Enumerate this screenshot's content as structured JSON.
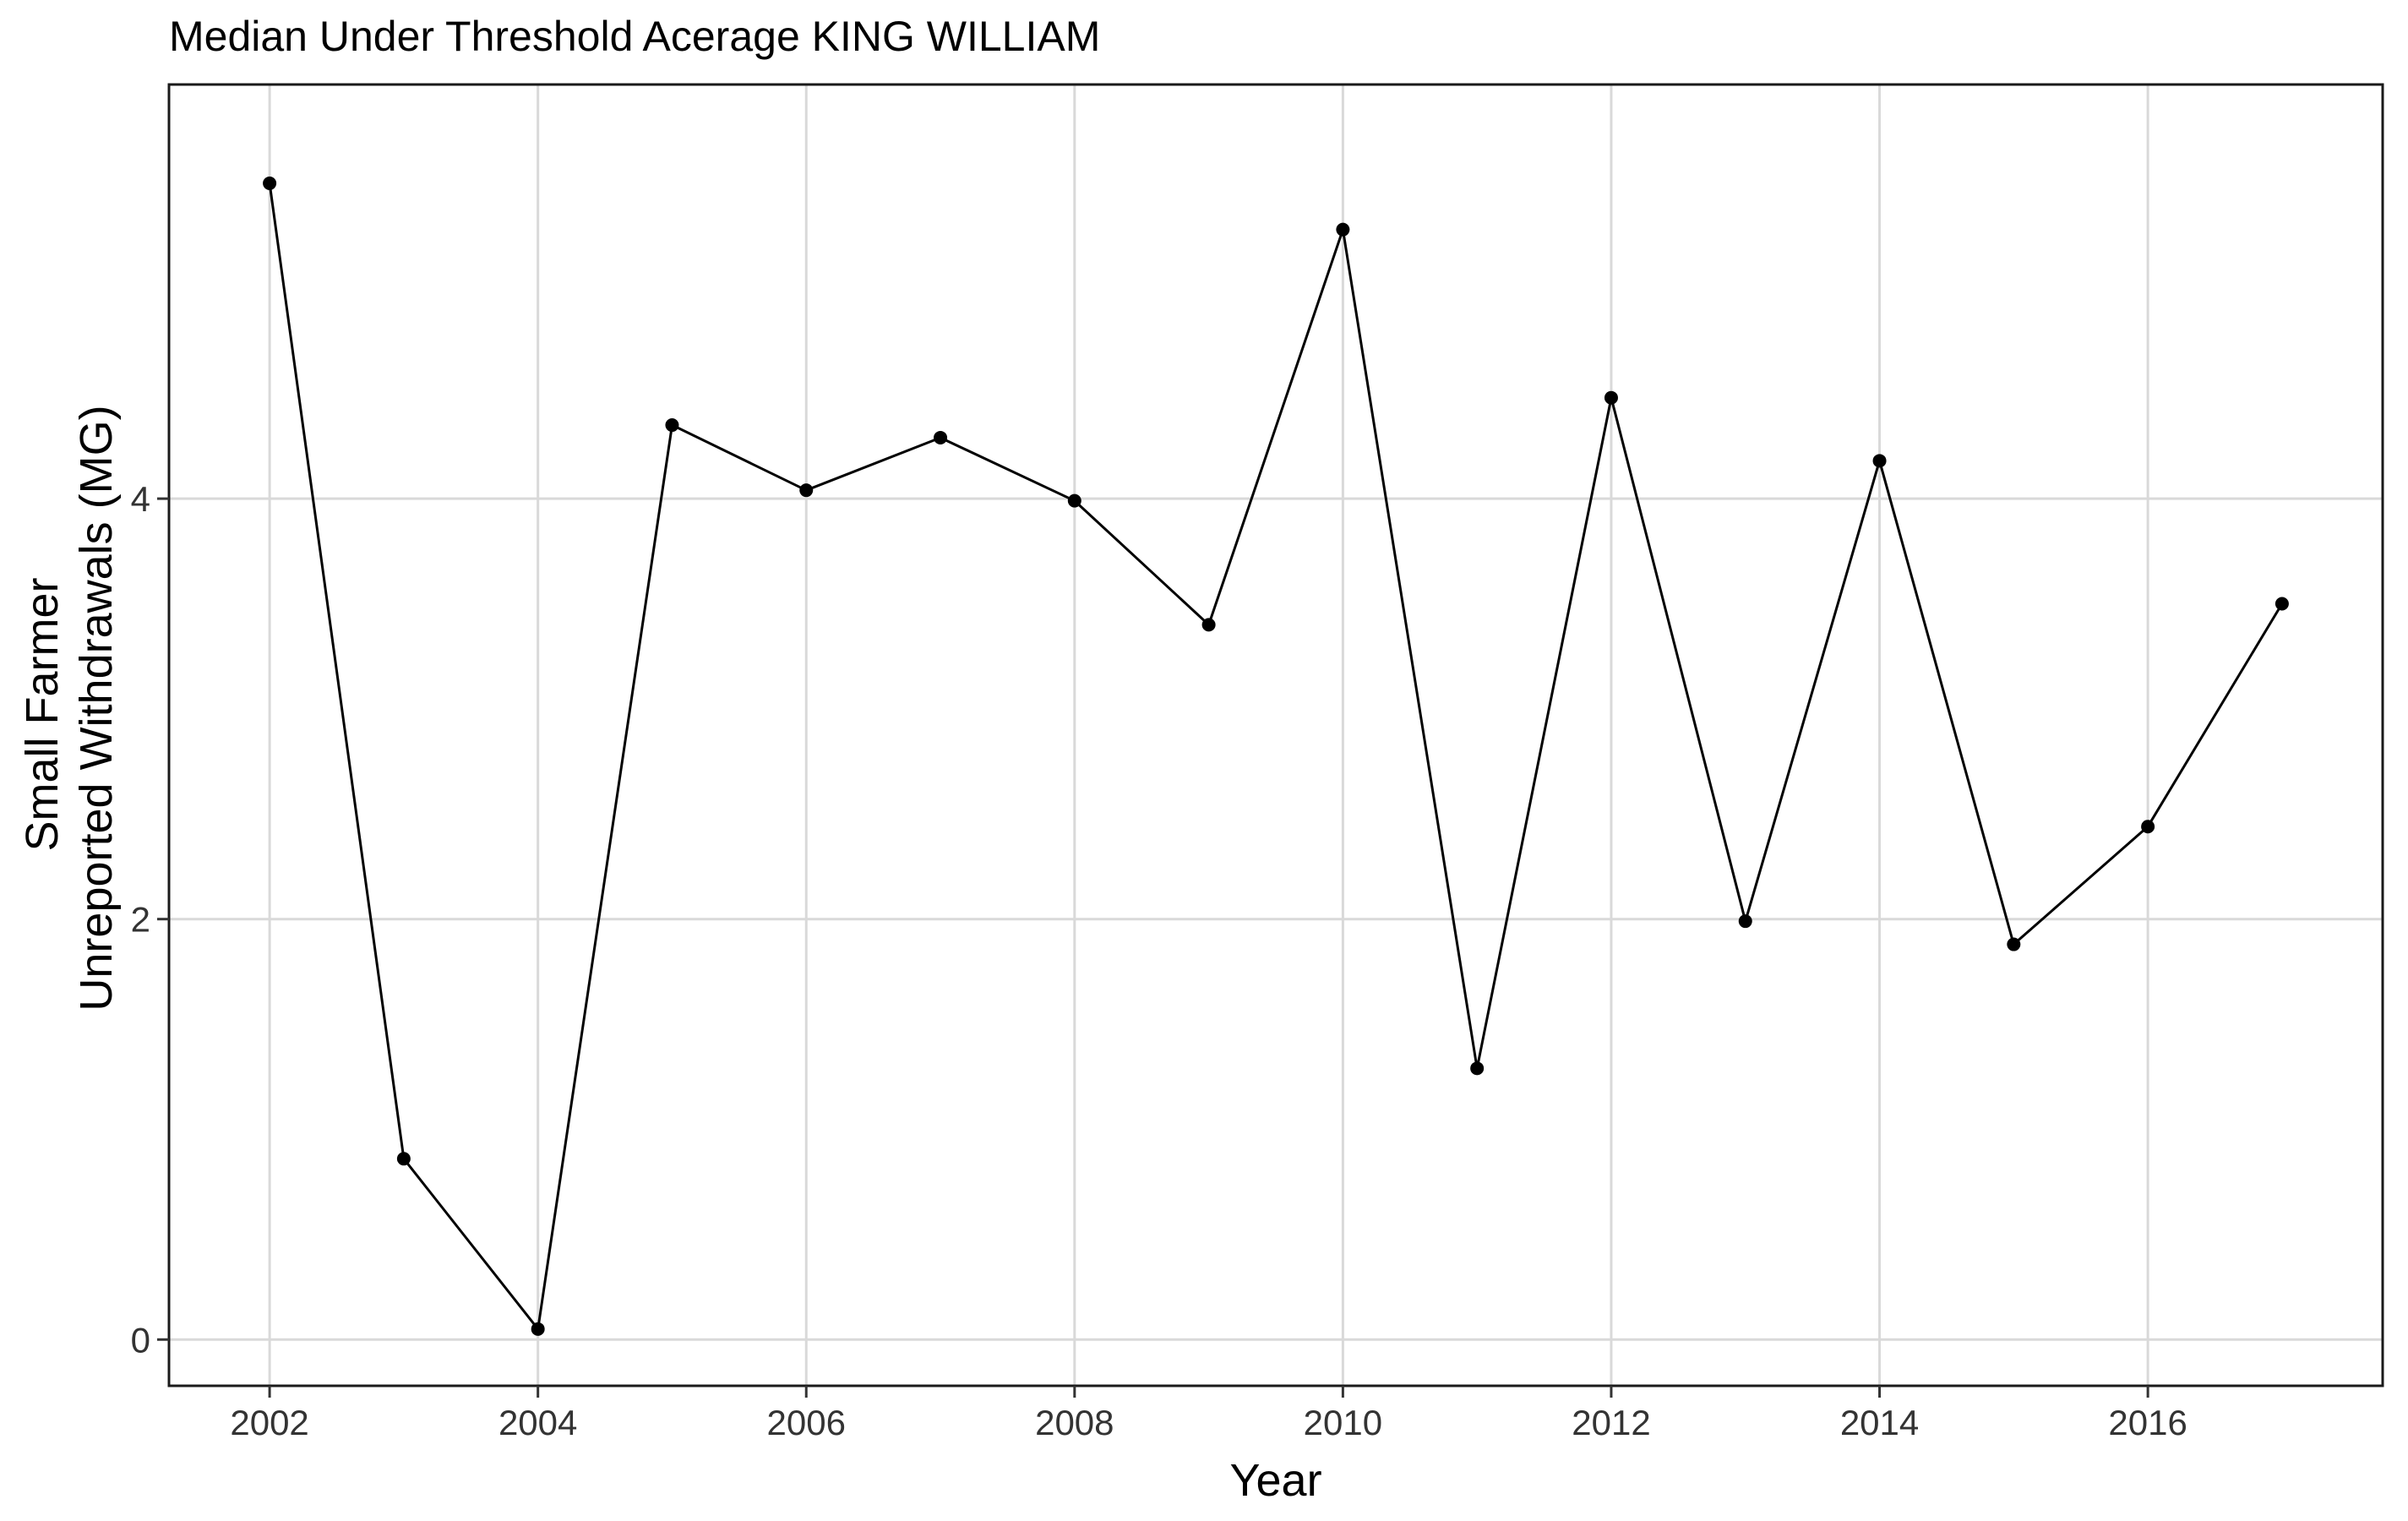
{
  "chart_data": {
    "type": "line",
    "title": "Median Under Threshold Acerage KING WILLIAM",
    "xlabel": "Year",
    "ylabel_lines": [
      "Small Farmer",
      "Unreported Withdrawals (MG)"
    ],
    "x_ticks": [
      2002,
      2004,
      2006,
      2008,
      2010,
      2012,
      2014,
      2016
    ],
    "y_ticks": [
      0,
      2,
      4
    ],
    "xlim": [
      2001.25,
      2017.75
    ],
    "ylim": [
      -0.22,
      5.97
    ],
    "grid": true,
    "legend": "none",
    "series": [
      {
        "line_color": "#000000",
        "x": [
          2002,
          2003,
          2004,
          2005,
          2006,
          2007,
          2008,
          2009,
          2010,
          2011,
          2012,
          2013,
          2014,
          2015,
          2016,
          2017
        ],
        "y": [
          5.5,
          0.86,
          0.05,
          4.35,
          4.04,
          4.29,
          3.99,
          3.4,
          5.28,
          1.29,
          4.48,
          1.99,
          4.18,
          1.88,
          2.44,
          3.5
        ]
      }
    ]
  }
}
